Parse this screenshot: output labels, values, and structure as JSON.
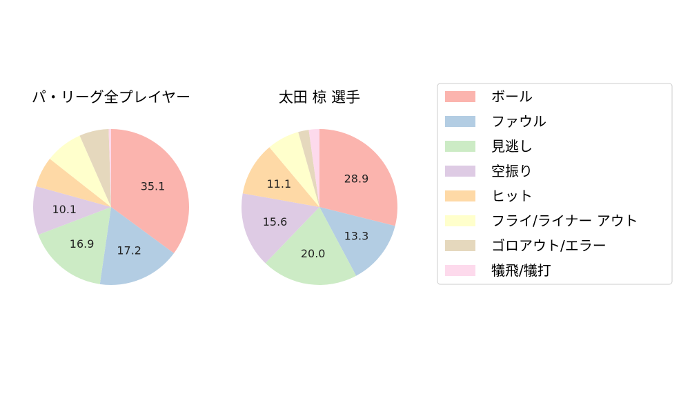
{
  "chart_data": [
    {
      "type": "pie",
      "title": "パ・リーグ全プレイヤー",
      "slices": [
        {
          "category": "ボール",
          "value": 35.1,
          "label": "35.1"
        },
        {
          "category": "ファウル",
          "value": 17.2,
          "label": "17.2"
        },
        {
          "category": "見逃し",
          "value": 16.9,
          "label": "16.9"
        },
        {
          "category": "空振り",
          "value": 10.1,
          "label": "10.1"
        },
        {
          "category": "ヒット",
          "value": 6.3,
          "label": ""
        },
        {
          "category": "フライ/ライナー アウト",
          "value": 7.8,
          "label": ""
        },
        {
          "category": "ゴロアウト/エラー",
          "value": 6.1,
          "label": ""
        },
        {
          "category": "犠飛/犠打",
          "value": 0.5,
          "label": ""
        }
      ]
    },
    {
      "type": "pie",
      "title": "太田 椋  選手",
      "slices": [
        {
          "category": "ボール",
          "value": 28.9,
          "label": "28.9"
        },
        {
          "category": "ファウル",
          "value": 13.3,
          "label": "13.3"
        },
        {
          "category": "見逃し",
          "value": 20.0,
          "label": "20.0"
        },
        {
          "category": "空振り",
          "value": 15.6,
          "label": "15.6"
        },
        {
          "category": "ヒット",
          "value": 11.1,
          "label": "11.1"
        },
        {
          "category": "フライ/ライナー アウト",
          "value": 6.7,
          "label": ""
        },
        {
          "category": "ゴロアウト/エラー",
          "value": 2.2,
          "label": ""
        },
        {
          "category": "犠飛/犠打",
          "value": 2.2,
          "label": ""
        }
      ]
    }
  ],
  "legend": {
    "placement": "right",
    "items": [
      {
        "label": "ボール",
        "color": "#fbb4ae"
      },
      {
        "label": "ファウル",
        "color": "#b3cde3"
      },
      {
        "label": "見逃し",
        "color": "#ccebc5"
      },
      {
        "label": "空振り",
        "color": "#decbe4"
      },
      {
        "label": "ヒット",
        "color": "#fed9a6"
      },
      {
        "label": "フライ/ライナー アウト",
        "color": "#ffffcc"
      },
      {
        "label": "ゴロアウト/エラー",
        "color": "#e5d8bd"
      },
      {
        "label": "犠飛/犠打",
        "color": "#fddaec"
      }
    ]
  }
}
